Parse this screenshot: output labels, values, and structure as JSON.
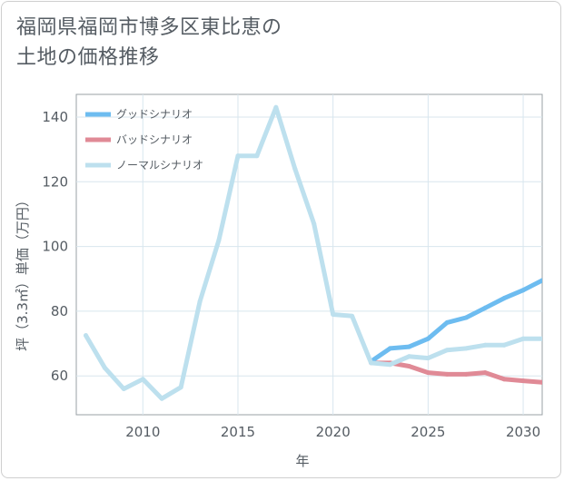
{
  "title_lines": [
    "福岡県福岡市博多区東比恵の",
    "土地の価格推移"
  ],
  "chart_data": {
    "type": "line",
    "title": "福岡県福岡市博多区東比恵の土地の価格推移",
    "xlabel": "年",
    "ylabel": "坪（3.3㎡）単価（万円）",
    "xlim": [
      2006.5,
      2031
    ],
    "ylim": [
      48,
      147
    ],
    "xticks": [
      2010,
      2015,
      2020,
      2025,
      2030
    ],
    "yticks": [
      60,
      80,
      100,
      120,
      140
    ],
    "grid": true,
    "legend_position": "top-left",
    "series": [
      {
        "name": "グッドシナリオ",
        "color": "#6dbcf0",
        "x": [
          2022,
          2023,
          2024,
          2025,
          2026,
          2027,
          2028,
          2029,
          2030,
          2031
        ],
        "values": [
          64.5,
          68.5,
          69,
          71.5,
          76.5,
          78,
          81,
          84,
          86.5,
          89.5
        ]
      },
      {
        "name": "バッドシナリオ",
        "color": "#e08a96",
        "x": [
          2022,
          2023,
          2024,
          2025,
          2026,
          2027,
          2028,
          2029,
          2030,
          2031
        ],
        "values": [
          64,
          64,
          63,
          61,
          60.5,
          60.5,
          61,
          59,
          58.5,
          58
        ]
      },
      {
        "name": "ノーマルシナリオ",
        "color": "#bde0ee",
        "x": [
          2007,
          2008,
          2009,
          2010,
          2011,
          2012,
          2013,
          2014,
          2015,
          2016,
          2017,
          2018,
          2019,
          2020,
          2021,
          2022,
          2023,
          2024,
          2025,
          2026,
          2027,
          2028,
          2029,
          2030,
          2031
        ],
        "values": [
          72.5,
          62.5,
          56,
          59,
          53,
          56.5,
          83,
          102,
          128,
          128,
          143,
          124,
          107,
          79,
          78.5,
          64,
          63.5,
          66,
          65.5,
          68,
          68.5,
          69.5,
          69.5,
          71.5,
          71.5
        ]
      }
    ]
  }
}
